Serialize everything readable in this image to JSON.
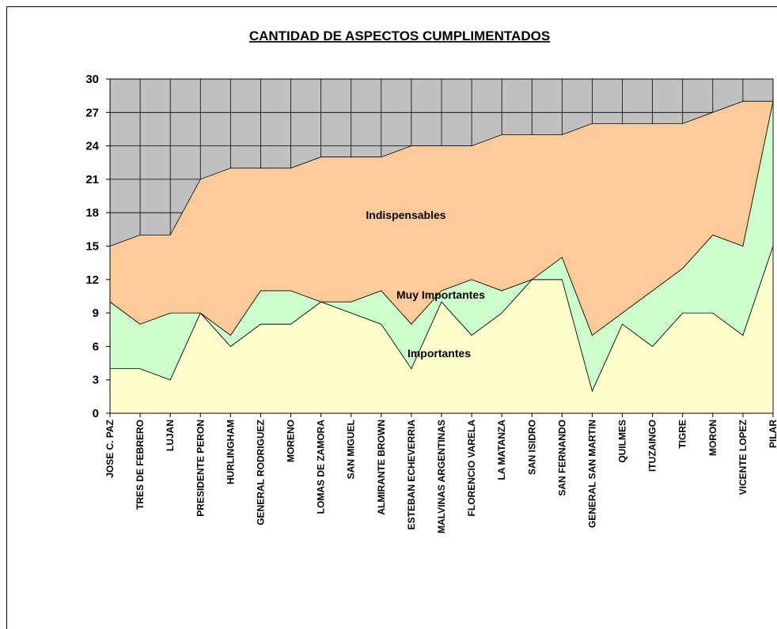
{
  "chart_data": {
    "type": "stacked_area",
    "title": "CANTIDAD DE ASPECTOS CUMPLIMENTADOS",
    "categories": [
      "JOSE C. PAZ",
      "TRES DE FEBRERO",
      "LUJAN",
      "PRESIDENTE PERON",
      "HURLINGHAM",
      "GENERAL RODRIGUEZ",
      "MORENO",
      "LOMAS DE ZAMORA",
      "SAN MIGUEL",
      "ALMIRANTE BROWN",
      "ESTEBAN ECHEVERRIA",
      "MALVINAS ARGENTINAS",
      "FLORENCIO VARELA",
      "LA MATANZA",
      "SAN ISIDRO",
      "SAN FERNANDO",
      "GENERAL SAN MARTIN",
      "QUILMES",
      "ITUZAINGO",
      "TIGRE",
      "MORON",
      "VICENTE LOPEZ",
      "PILAR"
    ],
    "series": [
      {
        "name": "Importantes",
        "color": "#ffffcc",
        "values": [
          4,
          4,
          3,
          9,
          6,
          8,
          8,
          10,
          9,
          8,
          4,
          10,
          7,
          9,
          12,
          12,
          2,
          8,
          6,
          9,
          9,
          7,
          15
        ]
      },
      {
        "name": "Muy Importantes",
        "color": "#ccffcc",
        "values": [
          6,
          4,
          6,
          0,
          1,
          3,
          3,
          0,
          1,
          3,
          4,
          1,
          5,
          2,
          0,
          2,
          5,
          1,
          5,
          4,
          7,
          8,
          13
        ]
      },
      {
        "name": "Indispensables",
        "color": "#ffcc99",
        "values": [
          5,
          8,
          7,
          12,
          15,
          11,
          11,
          13,
          13,
          12,
          16,
          13,
          12,
          14,
          13,
          11,
          19,
          17,
          15,
          13,
          11,
          13,
          0
        ]
      }
    ],
    "ylim": [
      0,
      30
    ],
    "yticks": [
      0,
      3,
      6,
      9,
      12,
      15,
      18,
      21,
      24,
      27,
      30
    ],
    "grid": true,
    "plot_background": "#c0c0c0"
  }
}
